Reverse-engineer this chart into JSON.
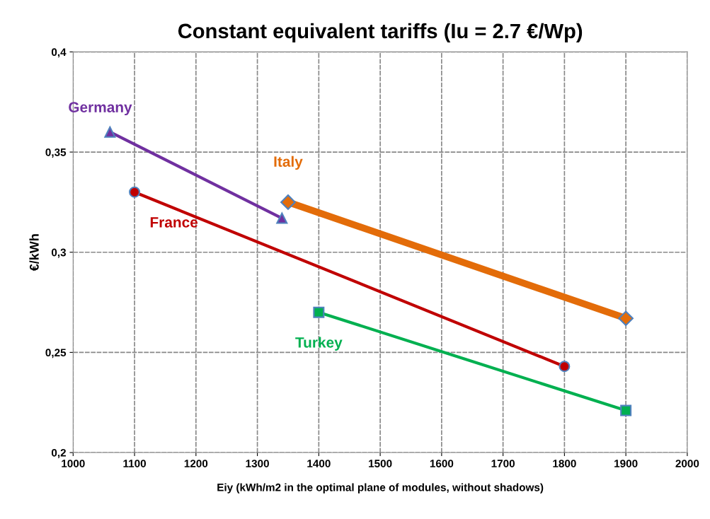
{
  "chart_data": {
    "type": "line",
    "title": "Constant equivalent tariffs (Iu = 2.7 €/Wp)",
    "xlabel": "Eiy (kWh/m2 in the optimal plane of modules, without shadows)",
    "ylabel": "€/kWh",
    "xlim": [
      1000,
      2000
    ],
    "xticks": [
      1000,
      1100,
      1200,
      1300,
      1400,
      1500,
      1600,
      1700,
      1800,
      1900,
      2000
    ],
    "ylim": [
      0.2,
      0.4
    ],
    "yticks": [
      {
        "value": 0.2,
        "label": "0,2"
      },
      {
        "value": 0.25,
        "label": "0,25"
      },
      {
        "value": 0.3,
        "label": "0,3"
      },
      {
        "value": 0.35,
        "label": "0,35"
      },
      {
        "value": 0.4,
        "label": "0,4"
      }
    ],
    "grid": true,
    "legend": false,
    "series": [
      {
        "name": "Germany",
        "color": "#7030a0",
        "marker": "triangle",
        "x": [
          1060,
          1340
        ],
        "values": [
          0.36,
          0.317
        ]
      },
      {
        "name": "France",
        "color": "#c00000",
        "marker": "circle",
        "x": [
          1100,
          1800
        ],
        "values": [
          0.33,
          0.243
        ]
      },
      {
        "name": "Italy",
        "color": "#e36c09",
        "marker": "diamond",
        "x": [
          1350,
          1900
        ],
        "values": [
          0.325,
          0.267
        ]
      },
      {
        "name": "Turkey",
        "color": "#00b050",
        "marker": "square",
        "x": [
          1400,
          1900
        ],
        "values": [
          0.27,
          0.221
        ]
      }
    ]
  }
}
